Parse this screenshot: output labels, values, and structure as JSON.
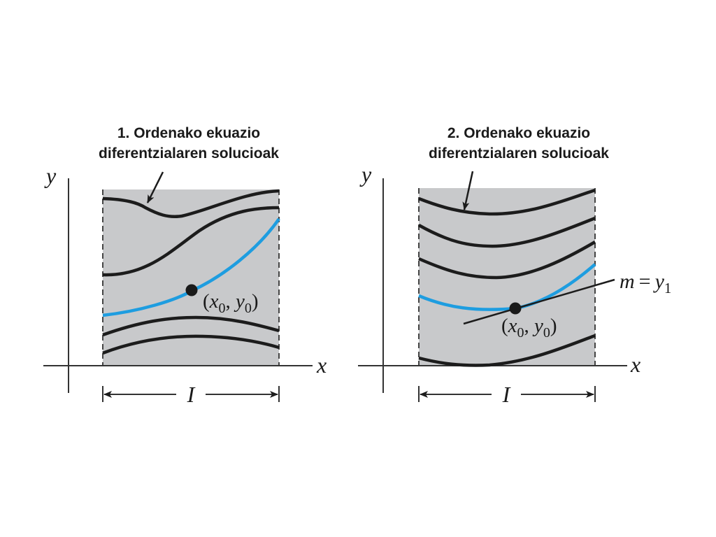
{
  "panels": [
    {
      "title_line1": "1. Ordenako ekuazio",
      "title_line2": "diferentzialaren solucioak",
      "axis_x": "x",
      "axis_y": "y",
      "interval": "I",
      "point_x": "x",
      "point_x_sub": "0",
      "point_y": "y",
      "point_y_sub": "0"
    },
    {
      "title_line1": "2. Ordenako ekuazio",
      "title_line2": "diferentzialaren solucioak",
      "axis_x": "x",
      "axis_y": "y",
      "interval": "I",
      "point_x": "x",
      "point_x_sub": "0",
      "point_y": "y",
      "point_y_sub": "0",
      "slope_m": "m",
      "slope_eq": "=",
      "slope_y": "y",
      "slope_y_sub": "1"
    }
  ],
  "colors": {
    "region": "#c8c9cb",
    "curve": "#1c1c1c",
    "highlight": "#1e9de0"
  }
}
